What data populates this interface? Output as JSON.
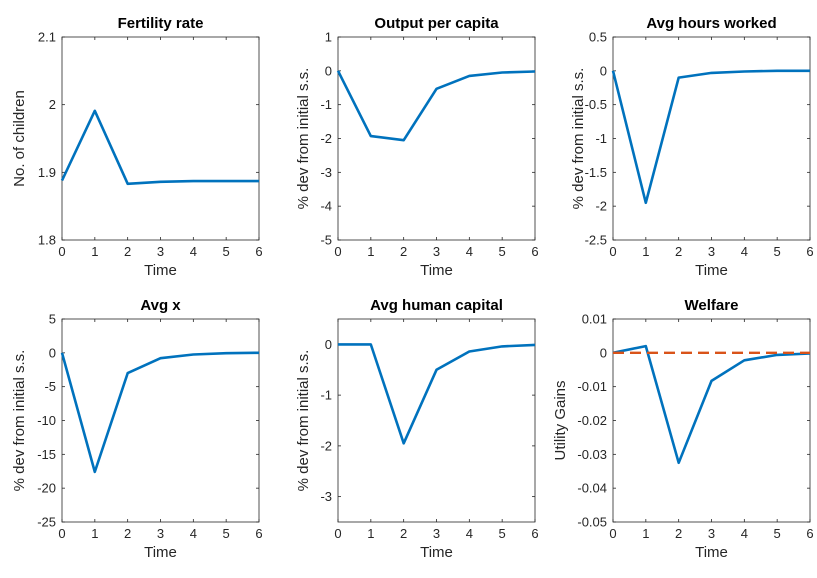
{
  "chart_data": [
    {
      "type": "line",
      "title": "Fertility rate",
      "xlabel": "Time",
      "ylabel": "No. of children",
      "xlim": [
        0,
        6
      ],
      "ylim": [
        1.8,
        2.1
      ],
      "xticks": [
        0,
        1,
        2,
        3,
        4,
        5,
        6
      ],
      "yticks": [
        1.8,
        1.9,
        2,
        2.1
      ],
      "ytick_labels": [
        "1.8",
        "1.9",
        "2",
        "2.1"
      ],
      "series": [
        {
          "x": [
            0,
            1,
            2,
            3,
            4,
            5,
            6
          ],
          "y": [
            1.888,
            1.991,
            1.883,
            1.886,
            1.887,
            1.887,
            1.887
          ],
          "color": "#0072BD",
          "style": "solid"
        }
      ]
    },
    {
      "type": "line",
      "title": "Output per capita",
      "xlabel": "Time",
      "ylabel": "% dev from initial s.s.",
      "xlim": [
        0,
        6
      ],
      "ylim": [
        -5,
        1
      ],
      "xticks": [
        0,
        1,
        2,
        3,
        4,
        5,
        6
      ],
      "yticks": [
        -5,
        -4,
        -3,
        -2,
        -1,
        0,
        1
      ],
      "ytick_labels": [
        "-5",
        "-4",
        "-3",
        "-2",
        "-1",
        "0",
        "1"
      ],
      "series": [
        {
          "x": [
            0,
            1,
            2,
            3,
            4,
            5,
            6
          ],
          "y": [
            0,
            -1.93,
            -2.05,
            -0.53,
            -0.15,
            -0.05,
            -0.02
          ],
          "color": "#0072BD",
          "style": "solid"
        }
      ]
    },
    {
      "type": "line",
      "title": "Avg hours worked",
      "xlabel": "Time",
      "ylabel": "% dev from initial s.s.",
      "xlim": [
        0,
        6
      ],
      "ylim": [
        -2.5,
        0.5
      ],
      "xticks": [
        0,
        1,
        2,
        3,
        4,
        5,
        6
      ],
      "yticks": [
        -2.5,
        -2,
        -1.5,
        -1,
        -0.5,
        0,
        0.5
      ],
      "ytick_labels": [
        "-2.5",
        "-2",
        "-1.5",
        "-1",
        "-0.5",
        "0",
        "0.5"
      ],
      "series": [
        {
          "x": [
            0,
            1,
            2,
            3,
            4,
            5,
            6
          ],
          "y": [
            0,
            -1.95,
            -0.1,
            -0.03,
            -0.01,
            0,
            0
          ],
          "color": "#0072BD",
          "style": "solid"
        }
      ]
    },
    {
      "type": "line",
      "title": "Avg x",
      "xlabel": "Time",
      "ylabel": "% dev from initial s.s.",
      "xlim": [
        0,
        6
      ],
      "ylim": [
        -25,
        5
      ],
      "xticks": [
        0,
        1,
        2,
        3,
        4,
        5,
        6
      ],
      "yticks": [
        -25,
        -20,
        -15,
        -10,
        -5,
        0,
        5
      ],
      "ytick_labels": [
        "-25",
        "-20",
        "-15",
        "-10",
        "-5",
        "0",
        "5"
      ],
      "series": [
        {
          "x": [
            0,
            1,
            2,
            3,
            4,
            5,
            6
          ],
          "y": [
            0,
            -17.6,
            -3.0,
            -0.8,
            -0.25,
            -0.05,
            0
          ],
          "color": "#0072BD",
          "style": "solid"
        }
      ]
    },
    {
      "type": "line",
      "title": "Avg human capital",
      "xlabel": "Time",
      "ylabel": "% dev from initial s.s.",
      "xlim": [
        0,
        6
      ],
      "ylim": [
        -3.5,
        0.5
      ],
      "xticks": [
        0,
        1,
        2,
        3,
        4,
        5,
        6
      ],
      "yticks": [
        -3,
        -2,
        -1,
        0
      ],
      "ytick_labels": [
        "-3",
        "-2",
        "-1",
        "0"
      ],
      "series": [
        {
          "x": [
            0,
            1,
            2,
            3,
            4,
            5,
            6
          ],
          "y": [
            0,
            0,
            -1.95,
            -0.5,
            -0.14,
            -0.04,
            -0.01
          ],
          "color": "#0072BD",
          "style": "solid"
        }
      ]
    },
    {
      "type": "line",
      "title": "Welfare",
      "xlabel": "Time",
      "ylabel": "Utility Gains",
      "xlim": [
        0,
        6
      ],
      "ylim": [
        -0.05,
        0.01
      ],
      "xticks": [
        0,
        1,
        2,
        3,
        4,
        5,
        6
      ],
      "yticks": [
        -0.05,
        -0.04,
        -0.03,
        -0.02,
        -0.01,
        0,
        0.01
      ],
      "ytick_labels": [
        "-0.05",
        "-0.04",
        "-0.03",
        "-0.02",
        "-0.01",
        "0",
        "0.01"
      ],
      "series": [
        {
          "x": [
            0,
            1,
            2,
            3,
            4,
            5,
            6
          ],
          "y": [
            0,
            0.002,
            -0.0325,
            -0.0083,
            -0.0022,
            -0.0006,
            -0.0002
          ],
          "color": "#0072BD",
          "style": "solid"
        },
        {
          "x": [
            0,
            6
          ],
          "y": [
            0,
            0
          ],
          "color": "#D95319",
          "style": "dashed"
        }
      ]
    }
  ]
}
